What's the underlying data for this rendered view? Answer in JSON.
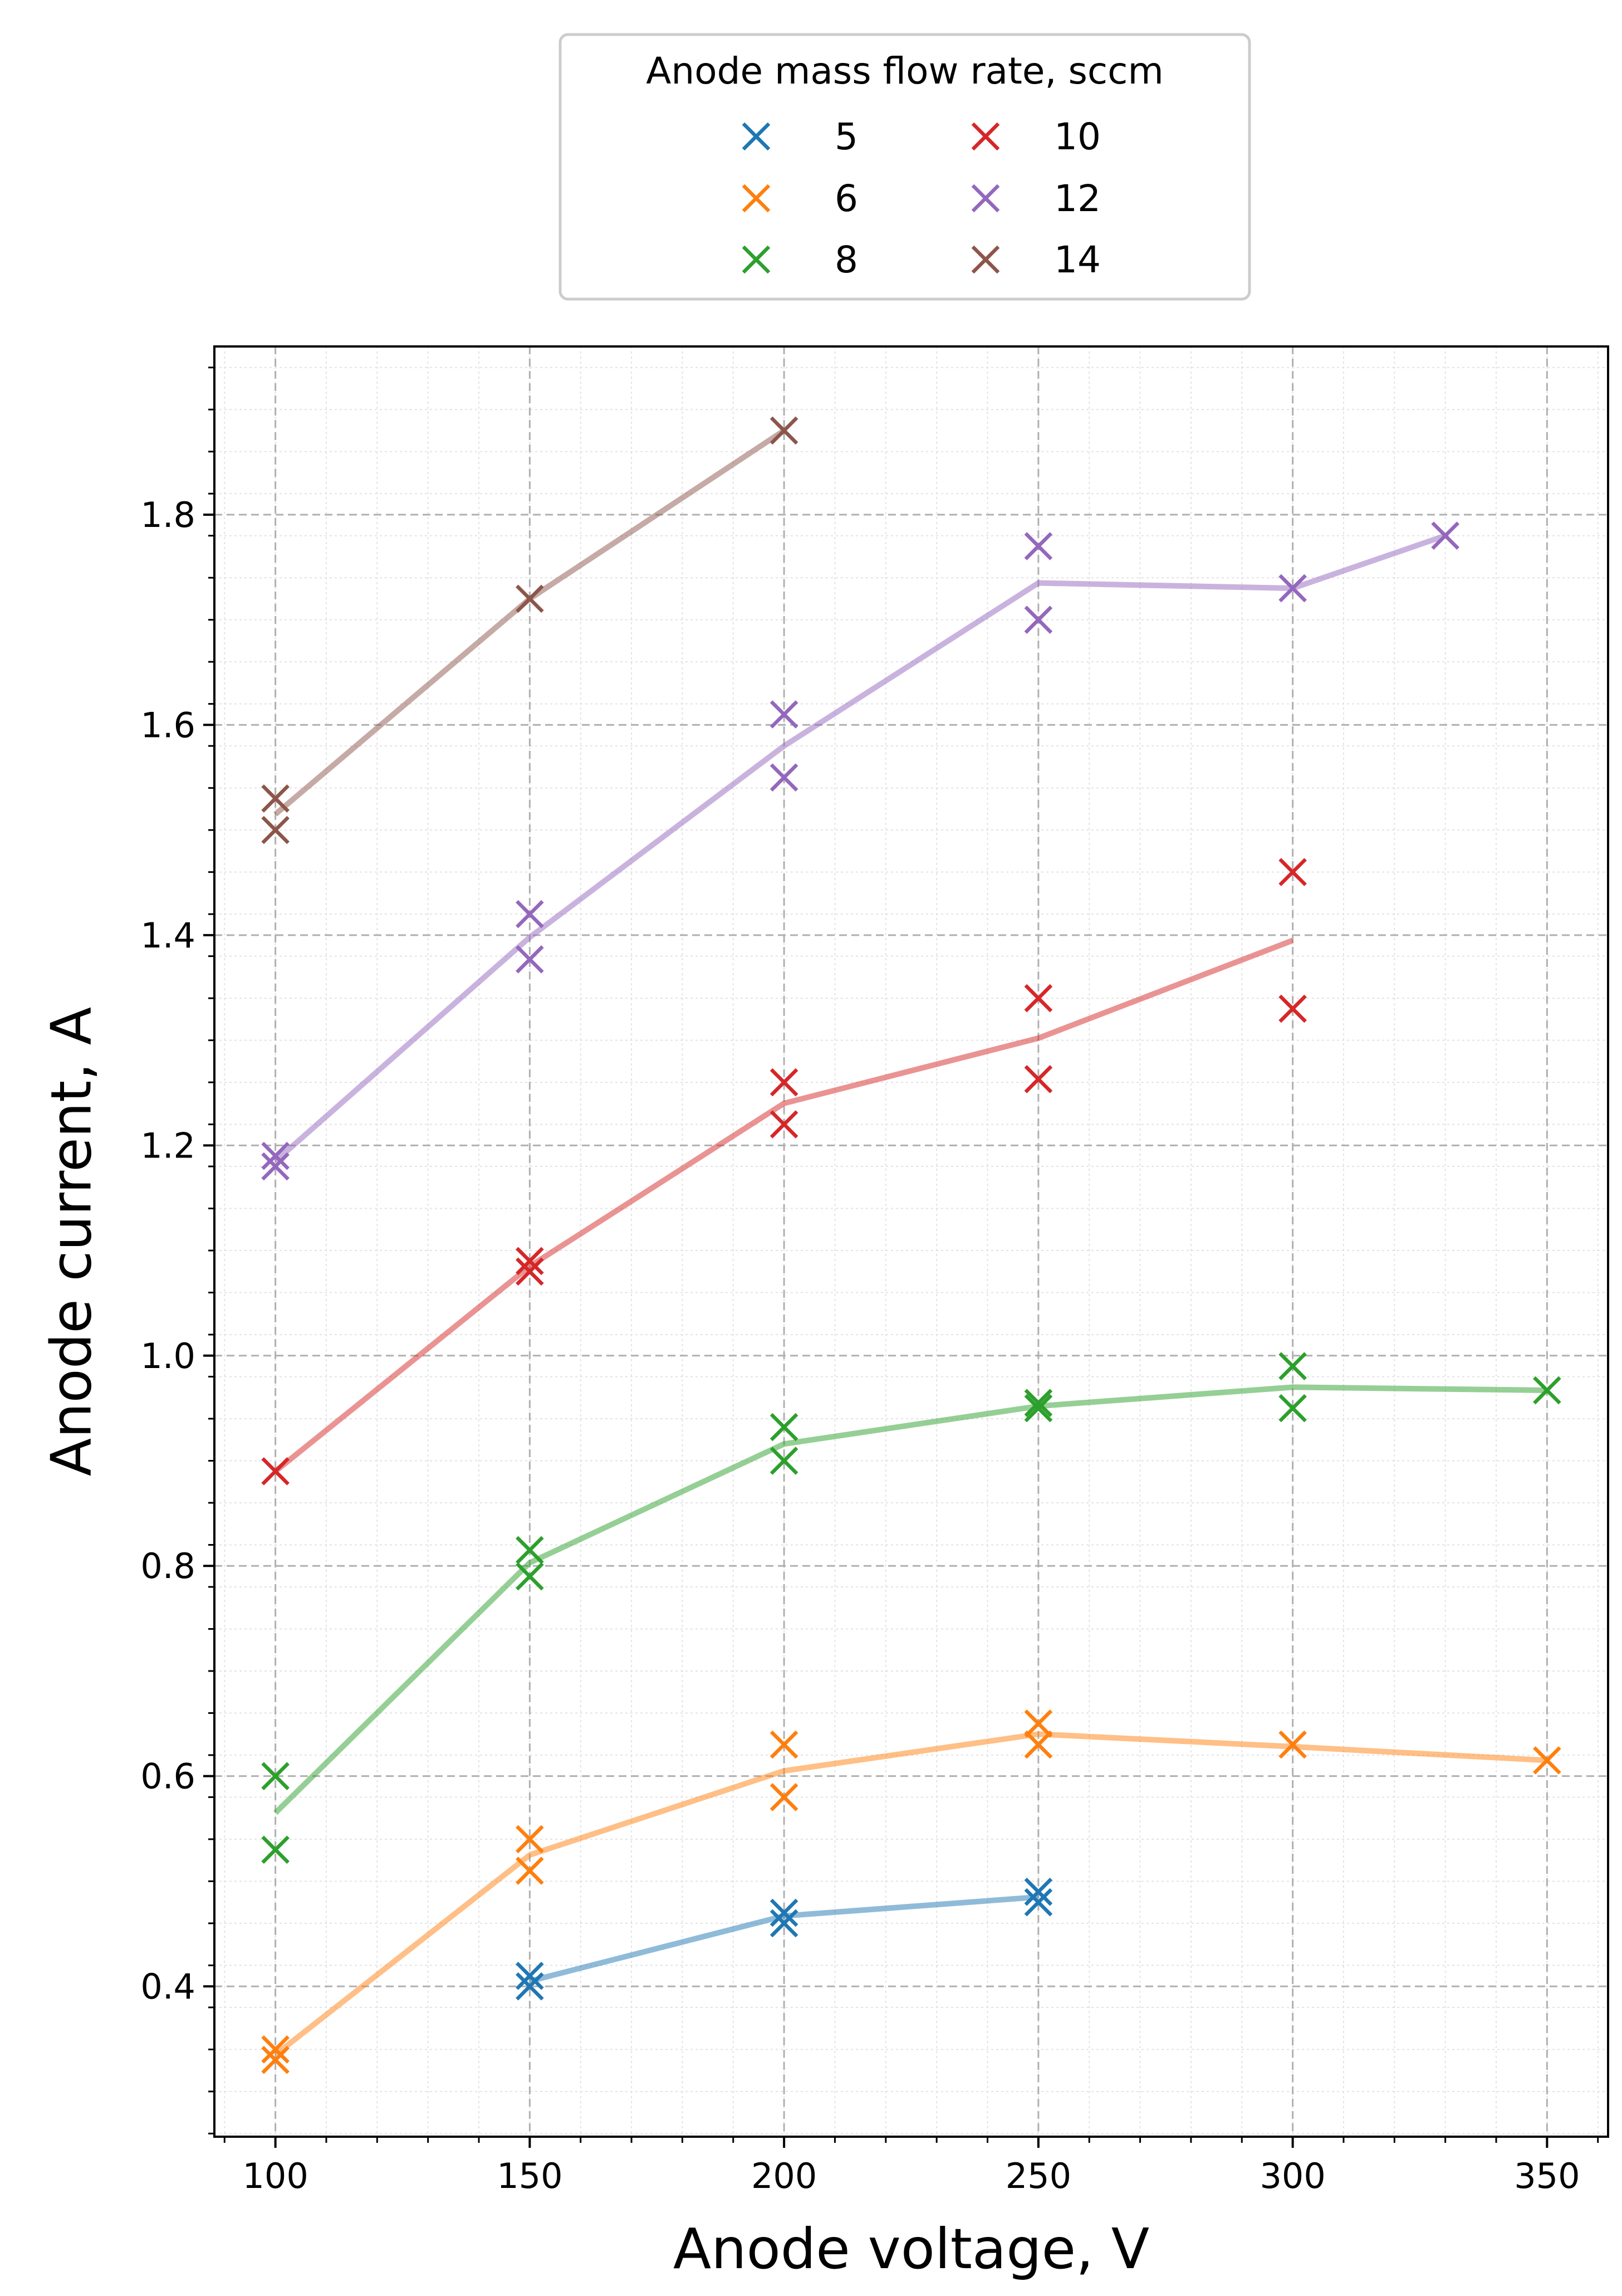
{
  "chart_data": {
    "type": "scatter",
    "title": "",
    "xlabel": "Anode voltage, V",
    "ylabel": "Anode current, A",
    "xlim": [
      88,
      362
    ],
    "ylim": [
      0.257,
      1.96
    ],
    "xticks": [
      100,
      150,
      200,
      250,
      300,
      350
    ],
    "yticks": [
      0.4,
      0.6,
      0.8,
      1.0,
      1.2,
      1.4,
      1.6,
      1.8
    ],
    "xtick_labels": [
      "100",
      "150",
      "200",
      "250",
      "300",
      "350"
    ],
    "ytick_labels": [
      "0.4",
      "0.6",
      "0.8",
      "1.0",
      "1.2",
      "1.4",
      "1.6",
      "1.8"
    ],
    "grid": true,
    "legend": {
      "title": "Anode mass flow rate, sccm",
      "location": "top-center"
    },
    "series": [
      {
        "name": "5",
        "color": "#1f77b4",
        "points": [
          [
            150,
            0.41
          ],
          [
            150,
            0.4
          ],
          [
            200,
            0.47
          ],
          [
            200,
            0.46
          ],
          [
            250,
            0.49
          ],
          [
            250,
            0.48
          ]
        ],
        "trend": [
          [
            150,
            0.405
          ],
          [
            200,
            0.467
          ],
          [
            250,
            0.485
          ]
        ]
      },
      {
        "name": "6",
        "color": "#ff7f0e",
        "points": [
          [
            100,
            0.34
          ],
          [
            100,
            0.33
          ],
          [
            150,
            0.54
          ],
          [
            150,
            0.51
          ],
          [
            200,
            0.63
          ],
          [
            200,
            0.58
          ],
          [
            250,
            0.65
          ],
          [
            250,
            0.63
          ],
          [
            300,
            0.63
          ],
          [
            350,
            0.615
          ]
        ],
        "trend": [
          [
            100,
            0.335
          ],
          [
            150,
            0.525
          ],
          [
            200,
            0.605
          ],
          [
            250,
            0.64
          ],
          [
            300,
            0.628
          ],
          [
            350,
            0.615
          ]
        ]
      },
      {
        "name": "8",
        "color": "#2ca02c",
        "points": [
          [
            100,
            0.6
          ],
          [
            100,
            0.53
          ],
          [
            150,
            0.815
          ],
          [
            150,
            0.79
          ],
          [
            200,
            0.932
          ],
          [
            200,
            0.9
          ],
          [
            250,
            0.955
          ],
          [
            250,
            0.95
          ],
          [
            300,
            0.99
          ],
          [
            300,
            0.95
          ],
          [
            350,
            0.967
          ]
        ],
        "trend": [
          [
            100,
            0.565
          ],
          [
            150,
            0.803
          ],
          [
            200,
            0.916
          ],
          [
            250,
            0.952
          ],
          [
            300,
            0.97
          ],
          [
            350,
            0.967
          ]
        ]
      },
      {
        "name": "10",
        "color": "#d62728",
        "points": [
          [
            100,
            0.89
          ],
          [
            150,
            1.09
          ],
          [
            150,
            1.08
          ],
          [
            200,
            1.26
          ],
          [
            200,
            1.22
          ],
          [
            250,
            1.34
          ],
          [
            250,
            1.263
          ],
          [
            300,
            1.46
          ],
          [
            300,
            1.33
          ]
        ],
        "trend": [
          [
            100,
            0.89
          ],
          [
            150,
            1.085
          ],
          [
            200,
            1.24
          ],
          [
            250,
            1.302
          ],
          [
            300,
            1.395
          ]
        ]
      },
      {
        "name": "12",
        "color": "#9467bd",
        "points": [
          [
            100,
            1.19
          ],
          [
            100,
            1.18
          ],
          [
            150,
            1.42
          ],
          [
            150,
            1.377
          ],
          [
            200,
            1.61
          ],
          [
            200,
            1.55
          ],
          [
            250,
            1.77
          ],
          [
            250,
            1.7
          ],
          [
            300,
            1.73
          ],
          [
            330,
            1.78
          ]
        ],
        "trend": [
          [
            100,
            1.185
          ],
          [
            150,
            1.398
          ],
          [
            200,
            1.58
          ],
          [
            250,
            1.735
          ],
          [
            300,
            1.73
          ],
          [
            330,
            1.78
          ]
        ]
      },
      {
        "name": "14",
        "color": "#8c564b",
        "points": [
          [
            100,
            1.53
          ],
          [
            100,
            1.5
          ],
          [
            150,
            1.72
          ],
          [
            200,
            1.88
          ]
        ],
        "trend": [
          [
            100,
            1.515
          ],
          [
            150,
            1.72
          ],
          [
            200,
            1.88
          ]
        ]
      }
    ]
  }
}
